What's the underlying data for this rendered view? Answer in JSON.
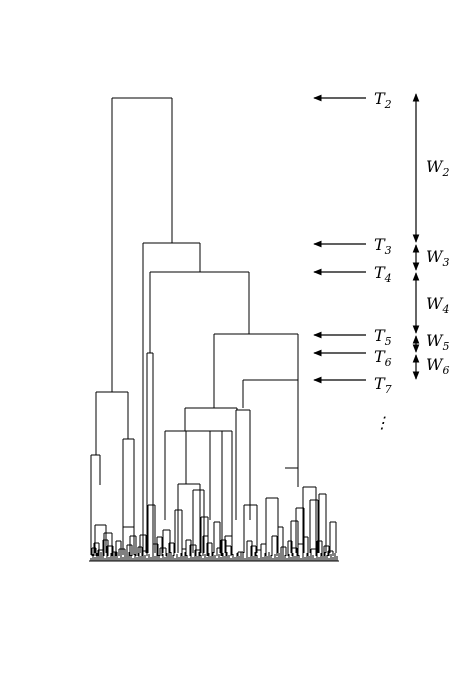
{
  "thresholds": [
    {
      "letter": "T",
      "sub": "2"
    },
    {
      "letter": "T",
      "sub": "3"
    },
    {
      "letter": "T",
      "sub": "4"
    },
    {
      "letter": "T",
      "sub": "5"
    },
    {
      "letter": "T",
      "sub": "6"
    },
    {
      "letter": "T",
      "sub": "7"
    }
  ],
  "windows": [
    {
      "letter": "W",
      "sub": "2"
    },
    {
      "letter": "W",
      "sub": "3"
    },
    {
      "letter": "W",
      "sub": "4"
    },
    {
      "letter": "W",
      "sub": "5"
    },
    {
      "letter": "W",
      "sub": "6"
    }
  ],
  "continuation": "⋮"
}
